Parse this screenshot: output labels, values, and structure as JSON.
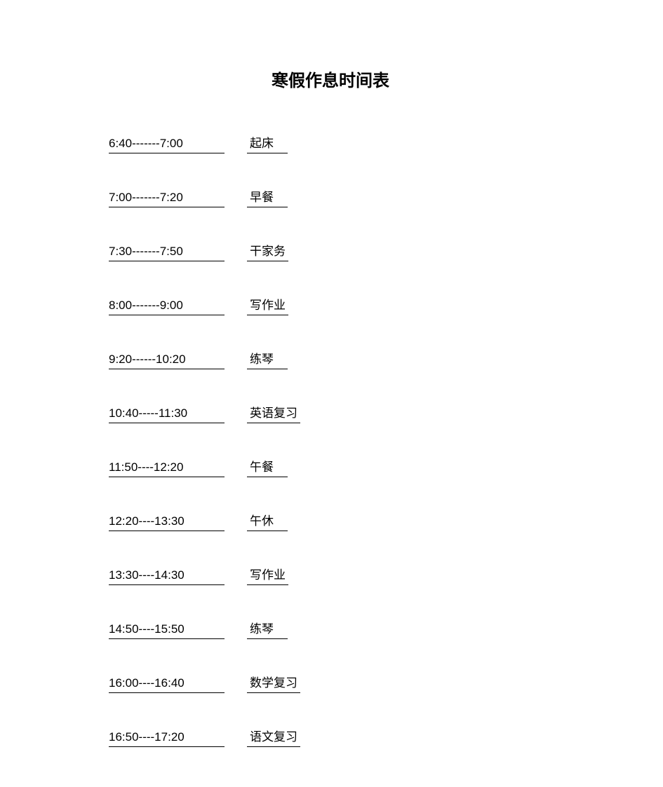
{
  "title": "寒假作息时间表",
  "rows": [
    {
      "time": "6:40-------7:00",
      "activity": "起床"
    },
    {
      "time": "7:00-------7:20",
      "activity": "早餐"
    },
    {
      "time": "7:30-------7:50",
      "activity": "干家务"
    },
    {
      "time": "8:00-------9:00",
      "activity": "写作业"
    },
    {
      "time": "9:20------10:20",
      "activity": "练琴"
    },
    {
      "time": "10:40-----11:30",
      "activity": "英语复习"
    },
    {
      "time": "11:50----12:20",
      "activity": "午餐"
    },
    {
      "time": "12:20----13:30",
      "activity": "午休"
    },
    {
      "time": "13:30----14:30",
      "activity": "写作业"
    },
    {
      "time": "14:50----15:50",
      "activity": "练琴"
    },
    {
      "time": "16:00----16:40",
      "activity": "数学复习"
    },
    {
      "time": "16:50----17:20",
      "activity": "语文复习"
    }
  ]
}
